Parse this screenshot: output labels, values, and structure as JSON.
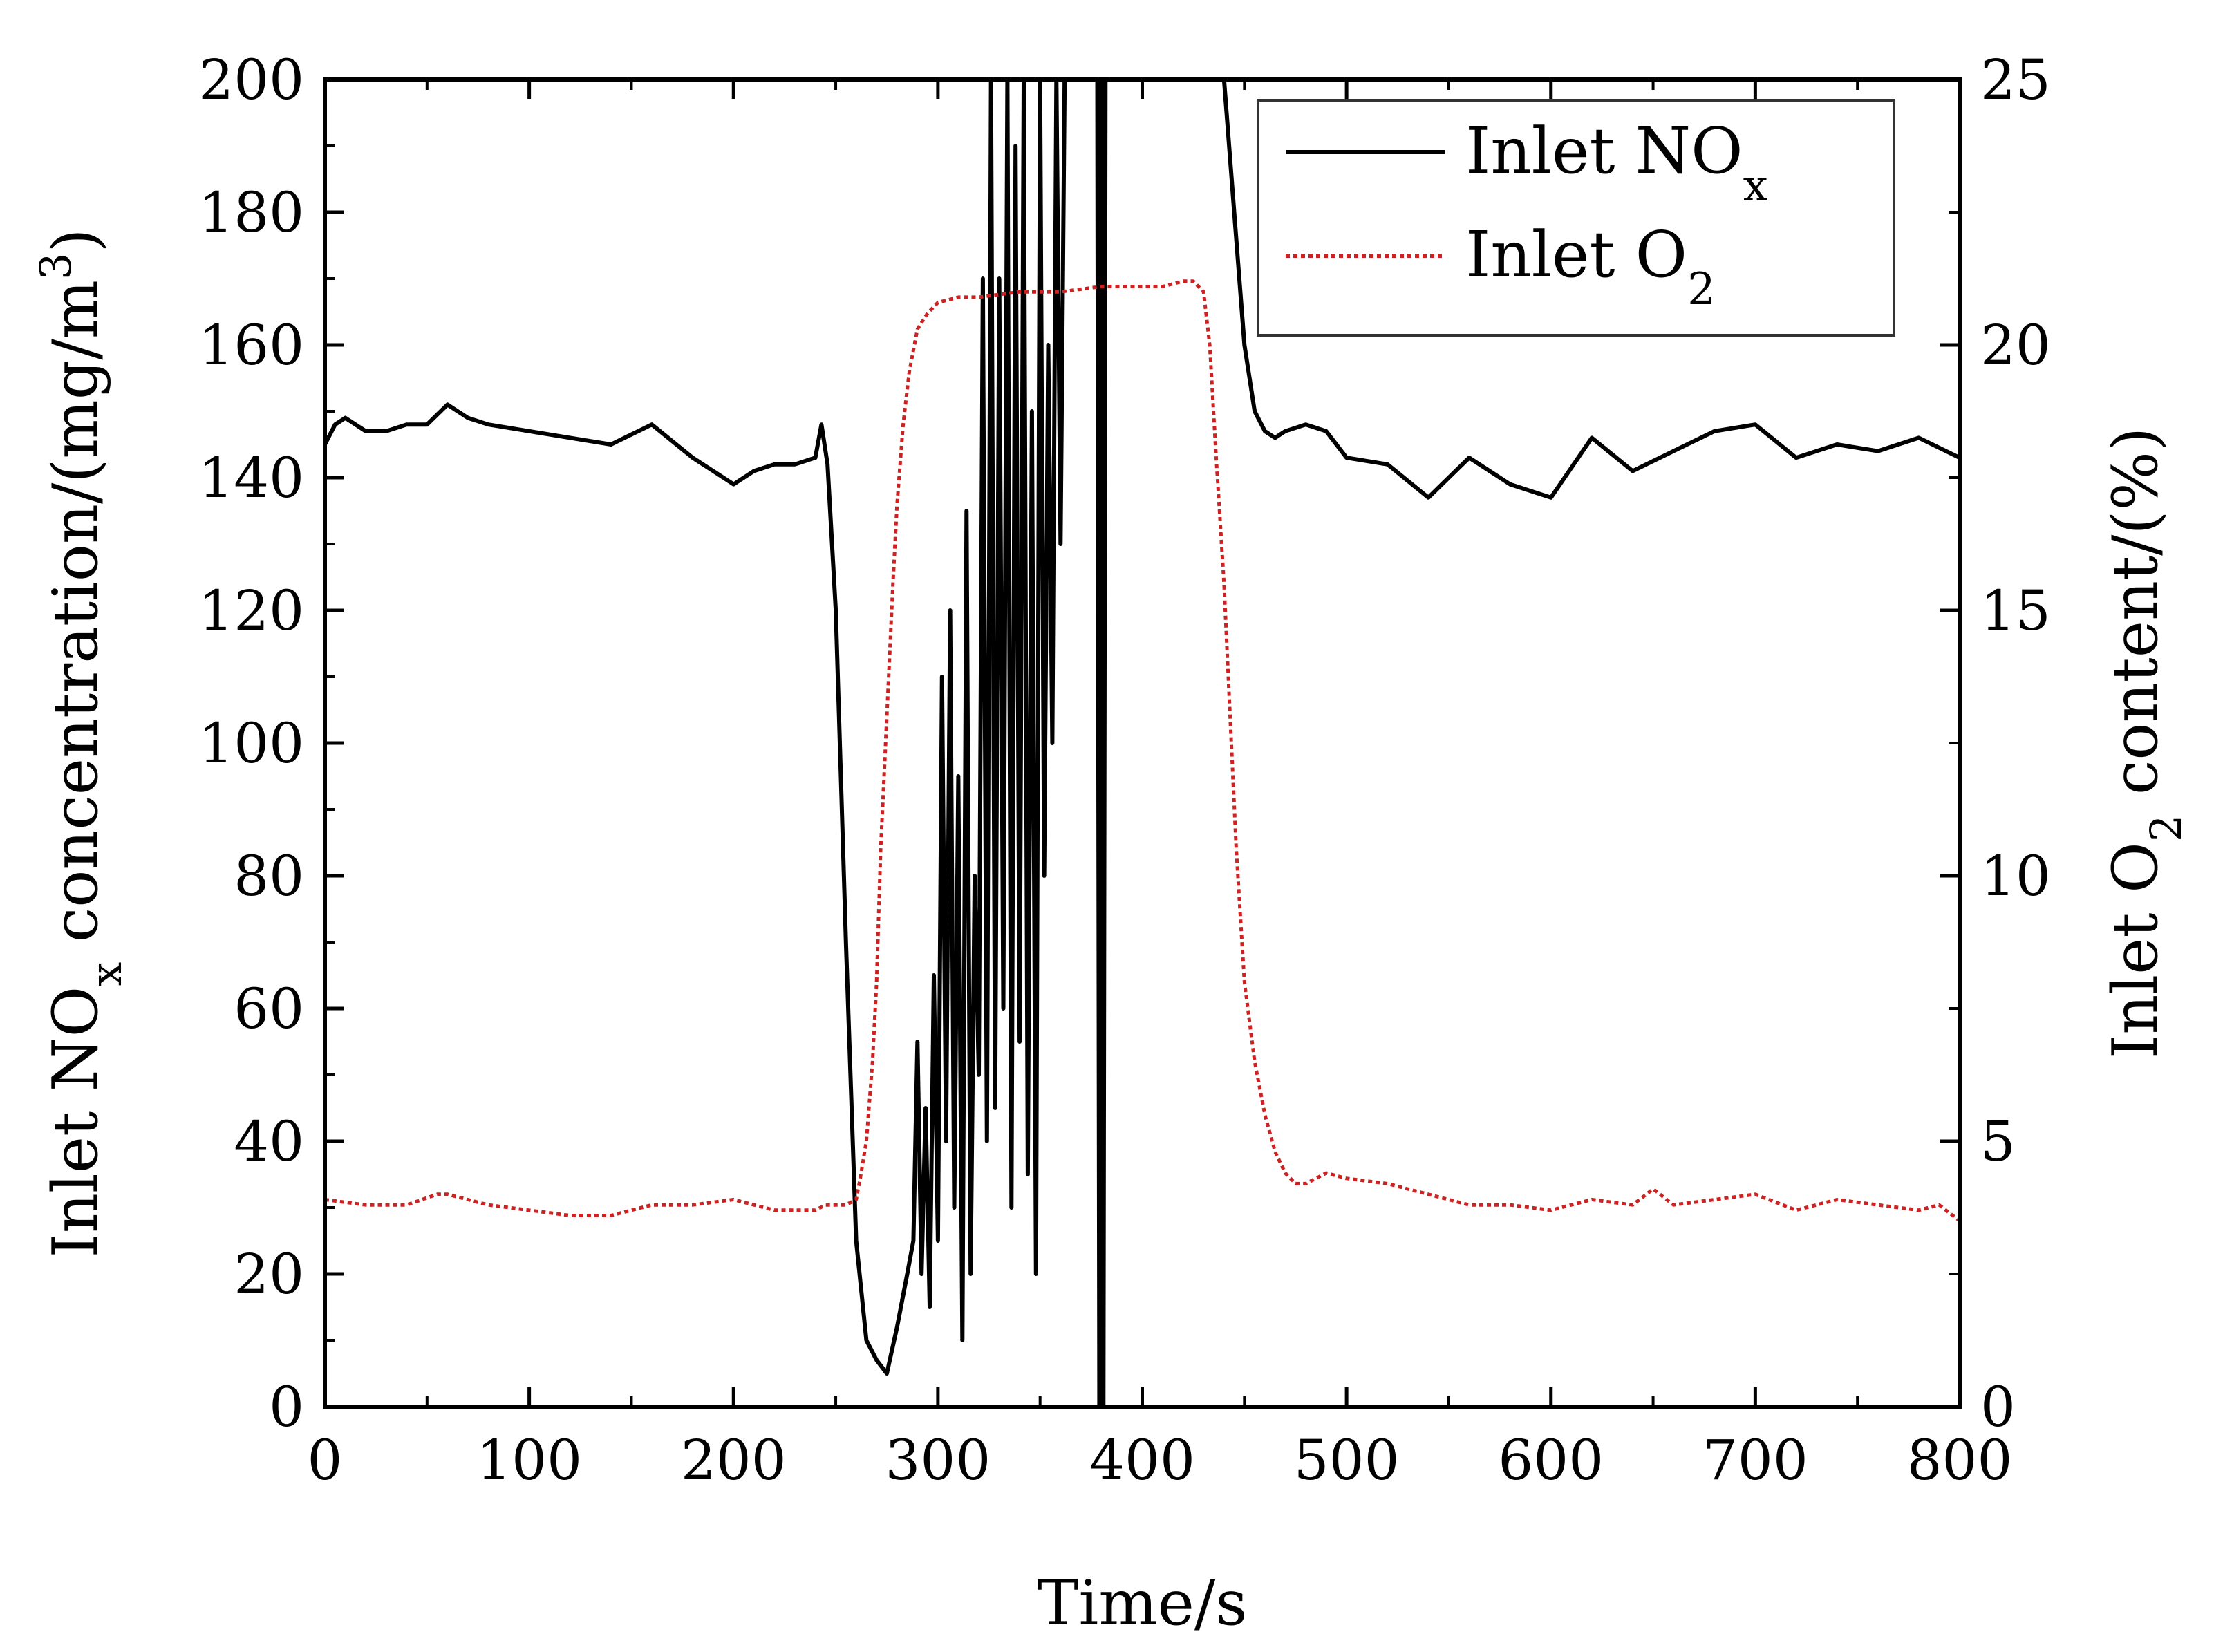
{
  "chart_data": {
    "type": "line",
    "title": "",
    "xlabel": "Time/s",
    "ylabel_left": {
      "prefix": "Inlet NO",
      "sub": "x",
      "suffix": " concentration/(mg/m",
      "sup": "3",
      "end": ")"
    },
    "ylabel_right": {
      "prefix": "Inlet O",
      "sub": "2",
      "suffix": " content/(%)"
    },
    "xlim": [
      0,
      800
    ],
    "ylim_left": [
      0,
      200
    ],
    "ylim_right": [
      0,
      25
    ],
    "x_ticks": [
      0,
      100,
      200,
      300,
      400,
      500,
      600,
      700,
      800
    ],
    "y_left_ticks": [
      0,
      20,
      40,
      60,
      80,
      100,
      120,
      140,
      160,
      180,
      200
    ],
    "y_right_ticks": [
      0,
      5,
      10,
      15,
      20,
      25
    ],
    "legend": {
      "placement": "top-right",
      "entries": [
        {
          "label": "Inlet NO",
          "sub": "x",
          "style": "solid",
          "color": "#000000"
        },
        {
          "label": "Inlet O",
          "sub": "2",
          "style": "dotted",
          "color": "#cc2222"
        }
      ]
    },
    "series": [
      {
        "name": "Inlet NOx",
        "axis": "left",
        "color": "#000000",
        "style": "solid",
        "x": [
          0,
          5,
          10,
          20,
          30,
          40,
          50,
          60,
          70,
          80,
          100,
          120,
          140,
          160,
          180,
          200,
          210,
          220,
          230,
          240,
          243,
          246,
          250,
          255,
          260,
          265,
          270,
          275,
          280,
          285,
          288,
          290,
          292,
          294,
          296,
          298,
          300,
          302,
          304,
          306,
          308,
          310,
          312,
          314,
          316,
          318,
          320,
          322,
          324,
          326,
          328,
          330,
          332,
          334,
          336,
          338,
          340,
          342,
          344,
          346,
          348,
          350,
          352,
          354,
          356,
          358,
          360,
          362,
          378,
          379,
          380,
          381,
          382,
          383,
          440,
          445,
          450,
          455,
          460,
          465,
          470,
          480,
          490,
          500,
          520,
          540,
          560,
          580,
          600,
          620,
          640,
          660,
          680,
          700,
          720,
          740,
          760,
          780,
          800
        ],
        "y": [
          145,
          148,
          149,
          147,
          147,
          148,
          148,
          151,
          149,
          148,
          147,
          146,
          145,
          148,
          143,
          139,
          141,
          142,
          142,
          143,
          148,
          142,
          120,
          70,
          25,
          10,
          7,
          5,
          12,
          20,
          25,
          55,
          20,
          45,
          15,
          65,
          25,
          110,
          40,
          120,
          30,
          95,
          10,
          135,
          20,
          80,
          50,
          170,
          40,
          200,
          45,
          170,
          60,
          200,
          30,
          190,
          55,
          200,
          35,
          150,
          20,
          200,
          80,
          160,
          100,
          200,
          130,
          200,
          200,
          0,
          200,
          0,
          200,
          200,
          200,
          180,
          160,
          150,
          147,
          146,
          147,
          148,
          147,
          143,
          142,
          137,
          143,
          139,
          137,
          146,
          141,
          144,
          147,
          148,
          143,
          145,
          144,
          146,
          143
        ]
      },
      {
        "name": "Inlet O2",
        "axis": "right",
        "color": "#cc2222",
        "style": "dotted",
        "x": [
          0,
          20,
          40,
          55,
          60,
          80,
          100,
          120,
          140,
          160,
          180,
          200,
          220,
          240,
          245,
          250,
          255,
          260,
          262,
          265,
          268,
          270,
          272,
          275,
          278,
          280,
          283,
          286,
          290,
          295,
          300,
          310,
          320,
          340,
          360,
          380,
          400,
          410,
          420,
          425,
          430,
          433,
          436,
          440,
          443,
          446,
          450,
          455,
          460,
          465,
          470,
          475,
          480,
          490,
          500,
          520,
          540,
          560,
          580,
          600,
          620,
          640,
          650,
          660,
          680,
          700,
          720,
          740,
          760,
          780,
          790,
          800
        ],
        "y": [
          3.9,
          3.8,
          3.8,
          4.0,
          4.0,
          3.8,
          3.7,
          3.6,
          3.6,
          3.8,
          3.8,
          3.9,
          3.7,
          3.7,
          3.8,
          3.8,
          3.8,
          3.9,
          4.3,
          5.0,
          6.5,
          8.0,
          10.5,
          13.0,
          15.5,
          17.0,
          18.5,
          19.5,
          20.3,
          20.6,
          20.8,
          20.9,
          20.9,
          21.0,
          21.0,
          21.1,
          21.1,
          21.1,
          21.2,
          21.2,
          21.0,
          20.0,
          18.0,
          15.5,
          13.0,
          10.5,
          8.0,
          6.5,
          5.5,
          4.8,
          4.4,
          4.2,
          4.2,
          4.4,
          4.3,
          4.2,
          4.0,
          3.8,
          3.8,
          3.7,
          3.9,
          3.8,
          4.1,
          3.8,
          3.9,
          4.0,
          3.7,
          3.9,
          3.8,
          3.7,
          3.8,
          3.5
        ]
      }
    ]
  }
}
